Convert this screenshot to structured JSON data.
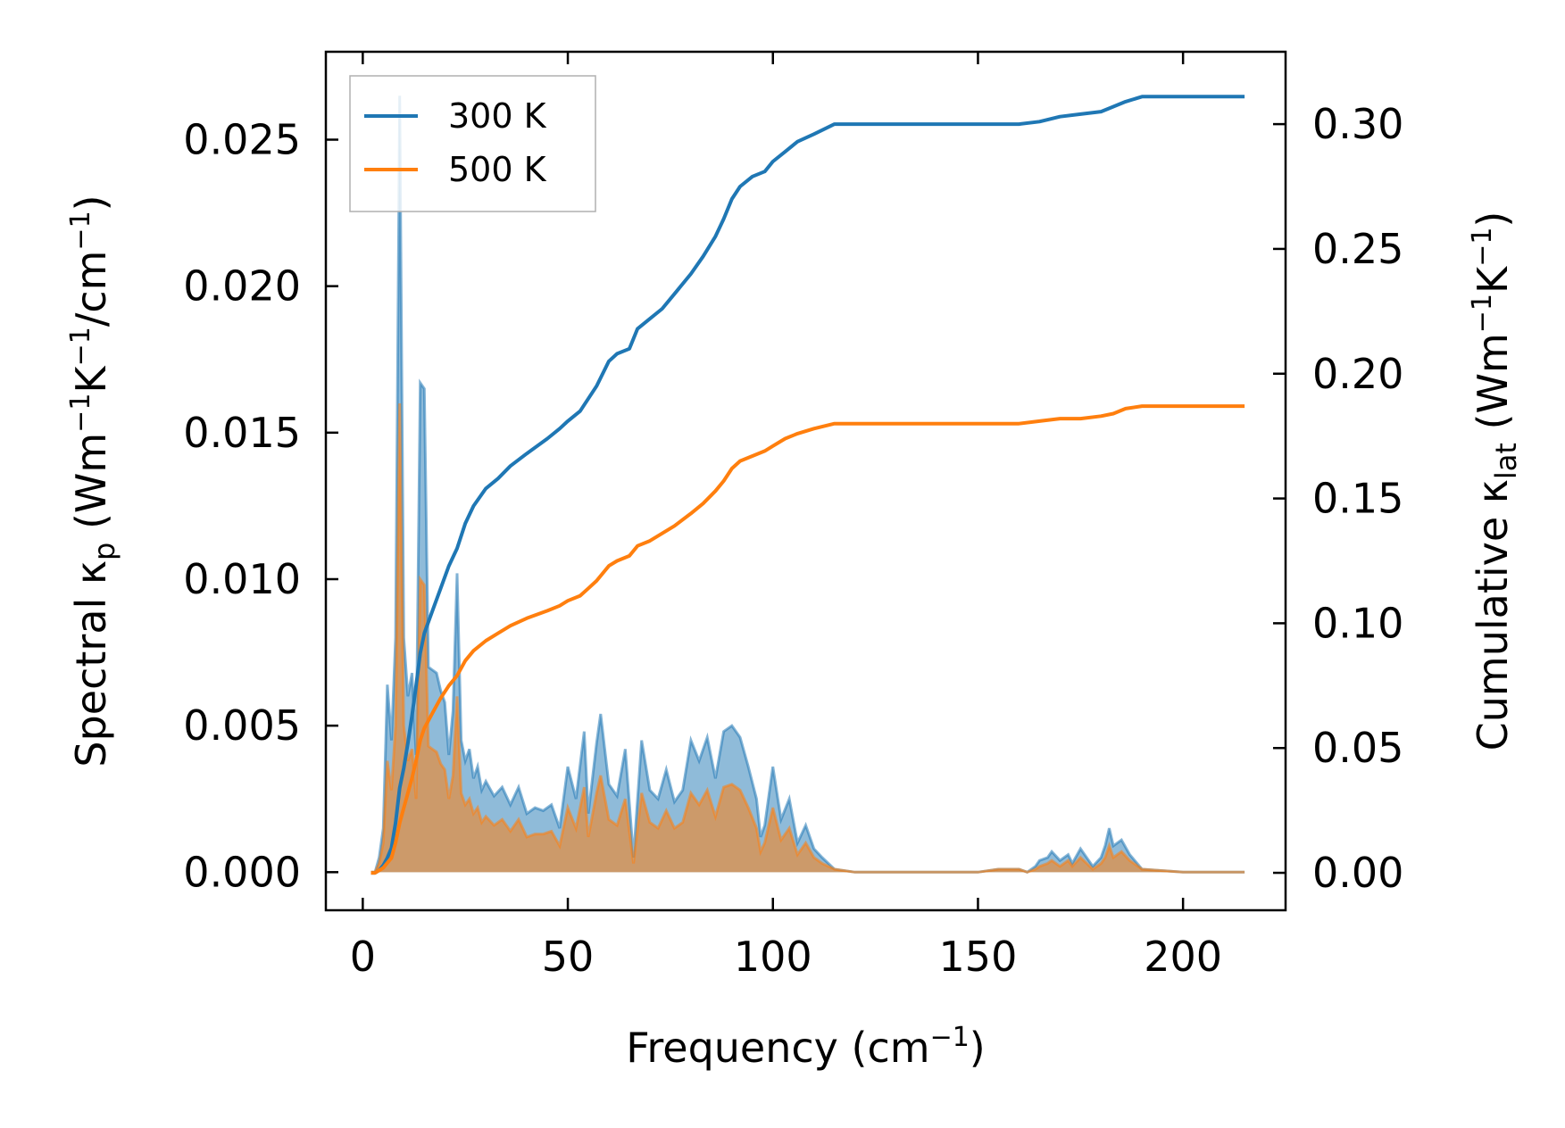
{
  "chart_data": {
    "type": "line",
    "xlabel": {
      "main": "Frequency (cm",
      "sup": "−1",
      "tail": ")"
    },
    "ylabel_left": {
      "pre": "Spectral κ",
      "sub": "p",
      "mid": " (Wm",
      "sup1": "−1",
      "mid2": "K",
      "sup2": "−1",
      "mid3": "/cm",
      "sup3": "−1",
      "tail": ")"
    },
    "ylabel_right": {
      "pre": "Cumulative κ",
      "sub": "lat",
      "mid": " (Wm",
      "sup1": "−1",
      "mid2": "K",
      "sup2": "−1",
      "tail": ")"
    },
    "xlim": [
      -9,
      225
    ],
    "ylim_left": [
      -0.0013,
      0.028
    ],
    "ylim_right": [
      -0.015,
      0.329
    ],
    "xticks": [
      "0",
      "50",
      "100",
      "150",
      "200"
    ],
    "xtick_values": [
      0,
      50,
      100,
      150,
      200
    ],
    "yticks_left": [
      "0.000",
      "0.005",
      "0.010",
      "0.015",
      "0.020",
      "0.025"
    ],
    "ytick_values_left": [
      0,
      0.005,
      0.01,
      0.015,
      0.02,
      0.025
    ],
    "yticks_right": [
      "0.00",
      "0.05",
      "0.10",
      "0.15",
      "0.20",
      "0.25",
      "0.30"
    ],
    "ytick_values_right": [
      0,
      0.05,
      0.1,
      0.15,
      0.2,
      0.25,
      0.3
    ],
    "legend": {
      "position": "top-left",
      "entries": [
        "300 K",
        "500 K"
      ]
    },
    "grid": false,
    "colors": {
      "300K": "#1f77b4",
      "500K": "#ff7f0e",
      "spectral_300K_fill": "#1f77b4",
      "spectral_500K_fill": "#ff7f0e"
    },
    "series": [
      {
        "name": "300 K",
        "axis": "right",
        "kind": "cumulative",
        "x": [
          2,
          3,
          4,
          5,
          6,
          7,
          8,
          9,
          10,
          11,
          12,
          13,
          14,
          15,
          17,
          19,
          21,
          23,
          25,
          27,
          30,
          33,
          36,
          40,
          45,
          48,
          50,
          53,
          55,
          57,
          60,
          62,
          65,
          67,
          70,
          73,
          76,
          80,
          83,
          86,
          88,
          90,
          92,
          95,
          98,
          100,
          103,
          106,
          110,
          115,
          120,
          130,
          150,
          160,
          165,
          170,
          175,
          180,
          183,
          186,
          190,
          200,
          210,
          215
        ],
        "y": [
          0.0,
          0.0,
          0.001,
          0.003,
          0.006,
          0.01,
          0.02,
          0.034,
          0.042,
          0.052,
          0.063,
          0.075,
          0.088,
          0.096,
          0.105,
          0.114,
          0.123,
          0.13,
          0.14,
          0.147,
          0.154,
          0.158,
          0.163,
          0.168,
          0.174,
          0.178,
          0.181,
          0.185,
          0.19,
          0.195,
          0.205,
          0.208,
          0.21,
          0.218,
          0.222,
          0.226,
          0.232,
          0.24,
          0.247,
          0.255,
          0.262,
          0.27,
          0.275,
          0.279,
          0.281,
          0.285,
          0.289,
          0.293,
          0.296,
          0.3,
          0.3,
          0.3,
          0.3,
          0.3,
          0.301,
          0.303,
          0.304,
          0.305,
          0.307,
          0.309,
          0.311,
          0.311,
          0.311,
          0.311
        ]
      },
      {
        "name": "500 K",
        "axis": "right",
        "kind": "cumulative",
        "x": [
          2,
          3,
          4,
          5,
          6,
          7,
          8,
          9,
          10,
          11,
          12,
          13,
          14,
          15,
          17,
          19,
          21,
          23,
          25,
          27,
          30,
          33,
          36,
          40,
          45,
          48,
          50,
          53,
          55,
          57,
          60,
          62,
          65,
          67,
          70,
          73,
          76,
          80,
          83,
          86,
          88,
          90,
          92,
          95,
          98,
          100,
          103,
          106,
          110,
          115,
          120,
          130,
          150,
          160,
          165,
          170,
          175,
          180,
          183,
          186,
          190,
          200,
          210,
          215
        ],
        "y": [
          0.0,
          0.0,
          0.001,
          0.002,
          0.004,
          0.006,
          0.012,
          0.02,
          0.026,
          0.032,
          0.038,
          0.045,
          0.053,
          0.058,
          0.064,
          0.07,
          0.075,
          0.079,
          0.085,
          0.089,
          0.093,
          0.096,
          0.099,
          0.102,
          0.105,
          0.107,
          0.109,
          0.111,
          0.114,
          0.117,
          0.123,
          0.125,
          0.127,
          0.131,
          0.133,
          0.136,
          0.139,
          0.144,
          0.148,
          0.153,
          0.157,
          0.162,
          0.165,
          0.167,
          0.169,
          0.171,
          0.174,
          0.176,
          0.178,
          0.18,
          0.18,
          0.18,
          0.18,
          0.18,
          0.181,
          0.182,
          0.182,
          0.183,
          0.184,
          0.186,
          0.187,
          0.187,
          0.187,
          0.187
        ]
      },
      {
        "name": "",
        "axis": "left",
        "kind": "spectral",
        "color_key": "spectral_300K_fill",
        "x": [
          2,
          3,
          4,
          5,
          6,
          7,
          8,
          9,
          10,
          11,
          12,
          13,
          14,
          15,
          16,
          17,
          18,
          19,
          20,
          21,
          22,
          23,
          24,
          25,
          26,
          27,
          28,
          29,
          30,
          32,
          34,
          36,
          38,
          40,
          42,
          44,
          46,
          48,
          50,
          52,
          54,
          55,
          57,
          58,
          60,
          62,
          64,
          66,
          68,
          70,
          72,
          74,
          76,
          78,
          80,
          82,
          84,
          86,
          88,
          90,
          92,
          94,
          96,
          97,
          98,
          100,
          102,
          104,
          106,
          108,
          110,
          112,
          115,
          120,
          130,
          150,
          155,
          160,
          162,
          164,
          165,
          167,
          168,
          170,
          172,
          173,
          175,
          178,
          180,
          181,
          182,
          183,
          185,
          187,
          190,
          200,
          215
        ],
        "y": [
          0.0,
          0.0,
          0.0005,
          0.0015,
          0.0064,
          0.0045,
          0.008,
          0.0265,
          0.008,
          0.006,
          0.0068,
          0.004,
          0.0167,
          0.0165,
          0.007,
          0.0069,
          0.0068,
          0.0062,
          0.0058,
          0.004,
          0.0055,
          0.0102,
          0.0045,
          0.0038,
          0.0042,
          0.0032,
          0.0036,
          0.0028,
          0.0031,
          0.0026,
          0.0029,
          0.0023,
          0.0029,
          0.002,
          0.0022,
          0.0021,
          0.0023,
          0.0015,
          0.0036,
          0.0025,
          0.0048,
          0.002,
          0.0044,
          0.0054,
          0.003,
          0.0026,
          0.0042,
          0.0005,
          0.0045,
          0.0028,
          0.0025,
          0.0035,
          0.0024,
          0.0028,
          0.0045,
          0.0038,
          0.0046,
          0.0032,
          0.0048,
          0.005,
          0.0046,
          0.0036,
          0.0025,
          0.0012,
          0.0016,
          0.0036,
          0.0018,
          0.0025,
          0.001,
          0.0016,
          0.0008,
          0.0005,
          0.0001,
          0.0,
          0.0,
          0.0,
          0.0001,
          0.0001,
          0.0,
          0.0002,
          0.0004,
          0.0005,
          0.0007,
          0.0004,
          0.0006,
          0.0003,
          0.0008,
          0.0002,
          0.0005,
          0.0009,
          0.0015,
          0.0009,
          0.0011,
          0.0006,
          0.0001,
          0.0,
          0.0
        ]
      },
      {
        "name": "",
        "axis": "left",
        "kind": "spectral",
        "color_key": "spectral_500K_fill",
        "x": [
          2,
          3,
          4,
          5,
          6,
          7,
          8,
          9,
          10,
          11,
          12,
          13,
          14,
          15,
          16,
          17,
          18,
          19,
          20,
          21,
          22,
          23,
          24,
          25,
          26,
          27,
          28,
          29,
          30,
          32,
          34,
          36,
          38,
          40,
          42,
          44,
          46,
          48,
          50,
          52,
          54,
          55,
          57,
          58,
          60,
          62,
          64,
          66,
          68,
          70,
          72,
          74,
          76,
          78,
          80,
          82,
          84,
          86,
          88,
          90,
          92,
          94,
          96,
          97,
          98,
          100,
          102,
          104,
          106,
          108,
          110,
          112,
          115,
          120,
          130,
          150,
          155,
          160,
          162,
          164,
          165,
          167,
          168,
          170,
          172,
          173,
          175,
          178,
          180,
          181,
          182,
          183,
          185,
          187,
          190,
          200,
          215
        ],
        "y": [
          0.0,
          0.0,
          0.0003,
          0.001,
          0.0038,
          0.0028,
          0.005,
          0.016,
          0.005,
          0.0038,
          0.0042,
          0.0025,
          0.01,
          0.0098,
          0.0043,
          0.0042,
          0.0041,
          0.0037,
          0.0035,
          0.0025,
          0.0033,
          0.006,
          0.0027,
          0.0023,
          0.0025,
          0.002,
          0.0022,
          0.0017,
          0.0019,
          0.0016,
          0.0018,
          0.0014,
          0.0018,
          0.0012,
          0.0013,
          0.0013,
          0.0014,
          0.0009,
          0.0022,
          0.0015,
          0.0029,
          0.0012,
          0.0027,
          0.0033,
          0.0018,
          0.0016,
          0.0025,
          0.0003,
          0.0027,
          0.0017,
          0.0015,
          0.0021,
          0.0015,
          0.0017,
          0.0027,
          0.0023,
          0.0028,
          0.0019,
          0.0029,
          0.003,
          0.0028,
          0.0022,
          0.0015,
          0.0007,
          0.001,
          0.0022,
          0.0011,
          0.0015,
          0.0006,
          0.001,
          0.0005,
          0.0003,
          0.0001,
          0.0,
          0.0,
          0.0,
          0.0001,
          0.0001,
          0.0,
          0.0001,
          0.0002,
          0.0003,
          0.0004,
          0.0002,
          0.0004,
          0.0002,
          0.0005,
          0.0001,
          0.0003,
          0.0005,
          0.0009,
          0.0005,
          0.0007,
          0.0004,
          0.0001,
          0.0,
          0.0
        ]
      }
    ]
  }
}
